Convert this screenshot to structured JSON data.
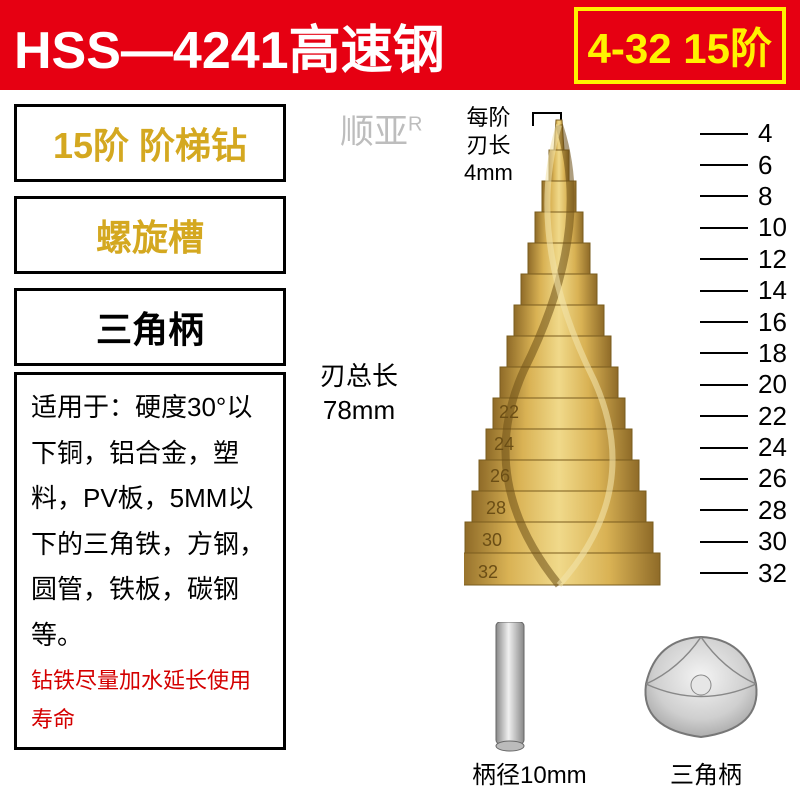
{
  "header": {
    "left_text": "HSS—4241高速钢",
    "right_text": "4-32 15阶",
    "bg_color": "#e60012",
    "left_color": "#ffffff",
    "right_color": "#fff200"
  },
  "left_panel": {
    "box1": "15阶 阶梯钻",
    "box2": "螺旋槽",
    "box3": "三角柄",
    "spec_text": "适用于：硬度30°以下铜，铝合金，塑料，PV板，5MM以下的三角铁，方钢，圆管，铁板，碳钢等。",
    "warning": "钻铁尽量加水延长使用寿命"
  },
  "diagram": {
    "brand": "顺亚",
    "brand_r": "R",
    "step_label_l1": "每阶",
    "step_label_l2": "刃长",
    "step_label_l3": "4mm",
    "blade_total_l1": "刃总长",
    "blade_total_l2": "78mm",
    "shank_label": "柄径10mm",
    "tri_label": "三角柄",
    "sizes": [
      4,
      6,
      8,
      10,
      12,
      14,
      16,
      18,
      20,
      22,
      24,
      26,
      28,
      30,
      32
    ],
    "drill_color": "#c9a04a",
    "drill_highlight": "#e5c878",
    "drill_shadow": "#9a7630"
  }
}
